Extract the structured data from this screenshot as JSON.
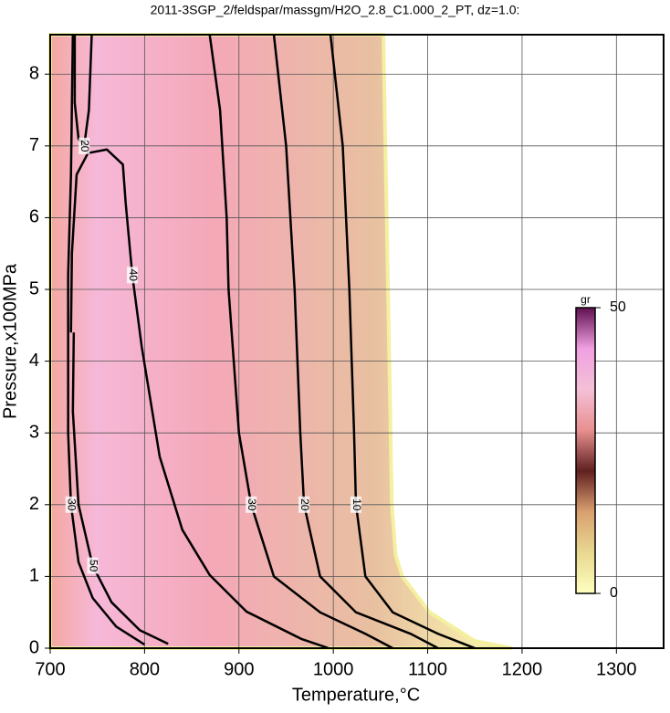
{
  "chart_data": {
    "type": "contour",
    "title": "2011-3SGP_2/feldspar/massgm/H2O_2.8_C1.000_2_PT, dz=1.0:",
    "x_label": "Temperature,°C",
    "y_label": "Pressure,x100MPa",
    "xlim": [
      700,
      1350
    ],
    "ylim": [
      0,
      8.55
    ],
    "xticks": [
      700,
      800,
      900,
      1000,
      1100,
      1200,
      1300
    ],
    "yticks": [
      0,
      1,
      2,
      3,
      4,
      5,
      6,
      7,
      8
    ],
    "grid": true,
    "extent": {
      "x": [
        700,
        1053,
        1058,
        1062,
        1066,
        1073,
        1102,
        1150,
        1189
      ],
      "y": [
        8.55,
        8.55,
        5,
        2,
        1.3,
        1,
        0.5,
        0.1,
        0
      ]
    },
    "contours": [
      {
        "level": 10,
        "x": [
          997,
          1010,
          1017,
          1022,
          1024,
          1034,
          1063,
          1111,
          1150
        ],
        "y": [
          8.55,
          7,
          5,
          3,
          2,
          1,
          0.5,
          0.2,
          0
        ]
      },
      {
        "level": 20,
        "x": [
          937,
          950,
          959,
          965,
          969,
          986,
          1024,
          1082,
          1111
        ],
        "y": [
          8.55,
          7,
          5,
          3,
          2,
          1,
          0.5,
          0.2,
          0
        ]
      },
      {
        "level": 30,
        "x": [
          869,
          880,
          887,
          889,
          900,
          913,
          937,
          986,
          1034,
          1063
        ],
        "y": [
          8.55,
          7.5,
          6,
          5,
          3,
          2,
          1,
          0.5,
          0.2,
          0
        ]
      },
      {
        "level": 40,
        "x": [
          995,
          966,
          908,
          869,
          840,
          816,
          797,
          787,
          780,
          777,
          760,
          740,
          728,
          723,
          722
        ],
        "y": [
          0,
          0.13,
          0.51,
          1.02,
          1.65,
          2.67,
          4.2,
          5.2,
          6.2,
          6.74,
          6.95,
          6.9,
          6.6,
          5.5,
          4.4
        ]
      },
      {
        "level": 50,
        "x": [
          725,
          724,
          730,
          745,
          765,
          795,
          825
        ],
        "y": [
          4.4,
          3.3,
          2,
          1.15,
          0.64,
          0.25,
          0.06
        ]
      },
      {
        "level": 30,
        "x": [
          724,
          722,
          719,
          719,
          722,
          730,
          745,
          770,
          800
        ],
        "y": [
          8.55,
          6.6,
          5.2,
          3,
          2,
          1.2,
          0.7,
          0.3,
          0.05
        ]
      },
      {
        "level": 20,
        "x": [
          726,
          726,
          730,
          736,
          741,
          744
        ],
        "y": [
          8.55,
          7.6,
          7.1,
          7,
          7.5,
          8.55
        ]
      }
    ],
    "colorbar": {
      "label": "gr",
      "lim": [
        0,
        50
      ],
      "ticks": [
        0,
        50
      ],
      "colormap": [
        "#ffffc0",
        "#e8d890",
        "#d9a070",
        "#602020",
        "#e89090",
        "#f4c0d8",
        "#f0a0e0",
        "#601050"
      ]
    }
  }
}
